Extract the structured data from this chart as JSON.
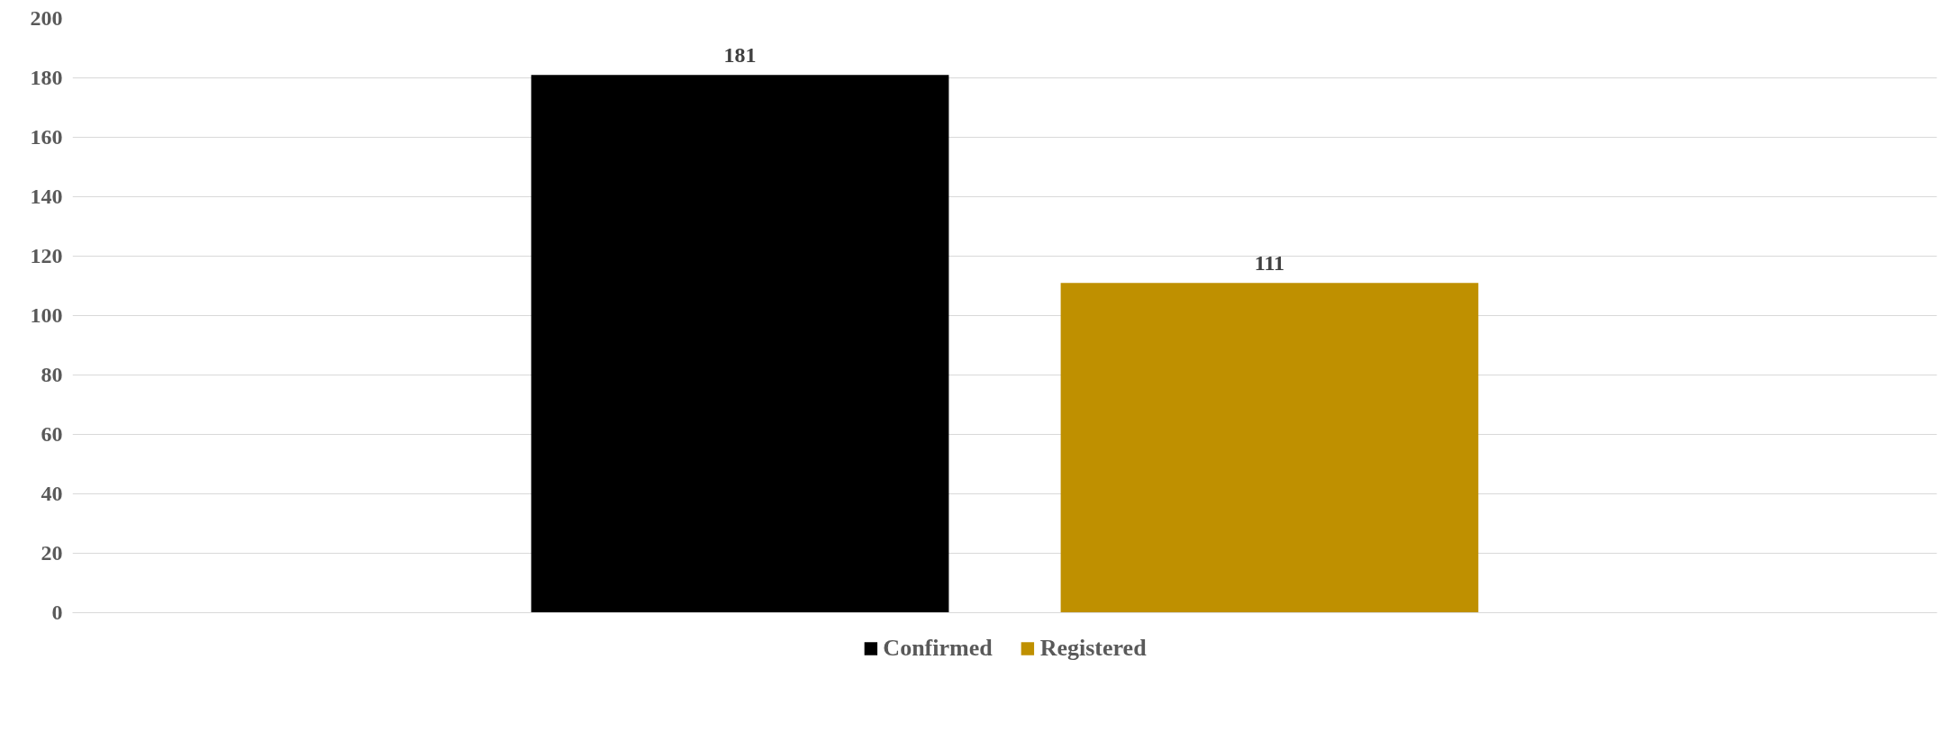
{
  "chart_data": {
    "type": "bar",
    "categories": [
      null
    ],
    "series": [
      {
        "name": "Confirmed",
        "color": "#000000",
        "values": [
          181
        ]
      },
      {
        "name": "Registered",
        "color": "#bf9000",
        "values": [
          111
        ]
      }
    ],
    "ylim": [
      0,
      200
    ],
    "yticks": [
      0,
      20,
      40,
      60,
      80,
      100,
      120,
      140,
      160,
      180,
      200
    ],
    "grid": "y",
    "legend": "bottom",
    "data_labels": true
  }
}
